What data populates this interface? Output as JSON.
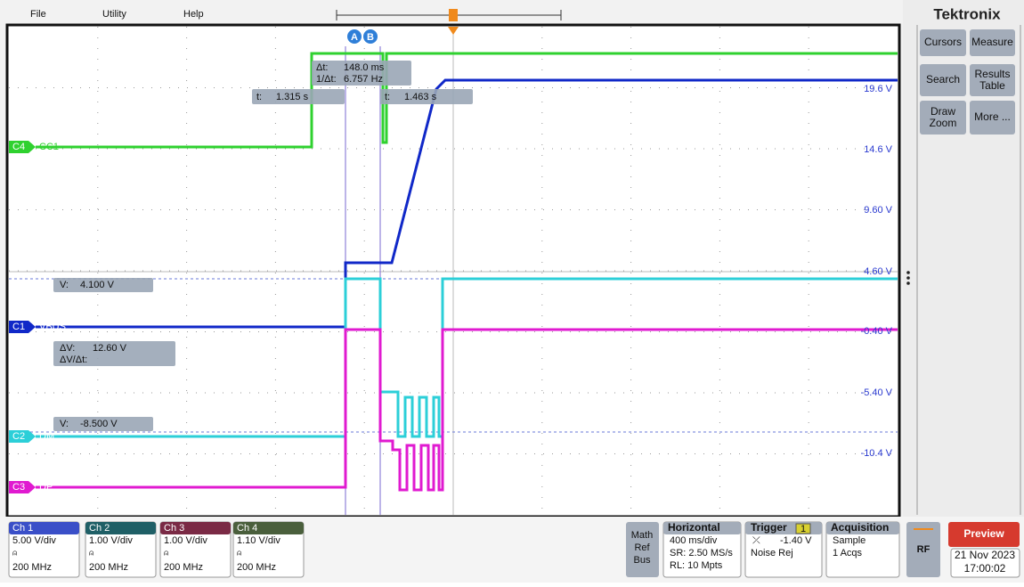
{
  "menu": [
    "File",
    "Utility",
    "Help"
  ],
  "brand": "Tektronix",
  "buttons": [
    "Cursors",
    "Measure",
    "Search",
    "Results Table",
    "Draw Zoom",
    "More ..."
  ],
  "cursor_labels": [
    "A",
    "B"
  ],
  "readouts": {
    "delta": [
      {
        "label": "Δt:",
        "value": "148.0 ms"
      },
      {
        "label": "1/Δt:",
        "value": "6.757 Hz"
      }
    ],
    "time_a": {
      "label": "t:",
      "value": "1.315 s"
    },
    "time_b": {
      "label": "t:",
      "value": "1.463 s"
    },
    "volt_a": {
      "label": "V:",
      "value": "4.100 V"
    },
    "volt_delta": [
      {
        "label": "ΔV:",
        "value": "12.60 V"
      },
      {
        "label": "ΔV/Δt:"
      }
    ],
    "volt_b": {
      "label": "V:",
      "value": "-8.500 V"
    }
  },
  "scale_labels": [
    "19.6 V",
    "14.6 V",
    "9.60 V",
    "4.60 V",
    "-0.40 V",
    "-5.40 V",
    "-10.4 V"
  ],
  "channels": [
    {
      "badge": "C4",
      "name": "CC1"
    },
    {
      "badge": "C1",
      "name": "VBUS"
    },
    {
      "badge": "C2",
      "name": "DM"
    },
    {
      "badge": "C3",
      "name": "DP"
    }
  ],
  "channel_settings": [
    {
      "title": "Ch 1",
      "scale": "5.00 V/div",
      "bandwidth": "200 MHz"
    },
    {
      "title": "Ch 2",
      "scale": "1.00 V/div",
      "bandwidth": "200 MHz"
    },
    {
      "title": "Ch 3",
      "scale": "1.00 V/div",
      "bandwidth": "200 MHz"
    },
    {
      "title": "Ch 4",
      "scale": "1.10 V/div",
      "bandwidth": "200 MHz"
    }
  ],
  "math_ref_bus": [
    "Math",
    "Ref",
    "Bus"
  ],
  "horizontal": {
    "title": "Horizontal",
    "lines": [
      "400 ms/div",
      "SR: 2.50 MS/s",
      "RL: 10 Mpts"
    ]
  },
  "trigger": {
    "title": "Trigger",
    "source": "1",
    "level": "-1.40 V",
    "mode": "Noise Rej"
  },
  "acquisition": {
    "title": "Acquisition",
    "lines": [
      "Sample",
      "1 Acqs"
    ]
  },
  "rf": "RF",
  "preview": "Preview",
  "date": "21 Nov 2023",
  "time": "17:00:02"
}
